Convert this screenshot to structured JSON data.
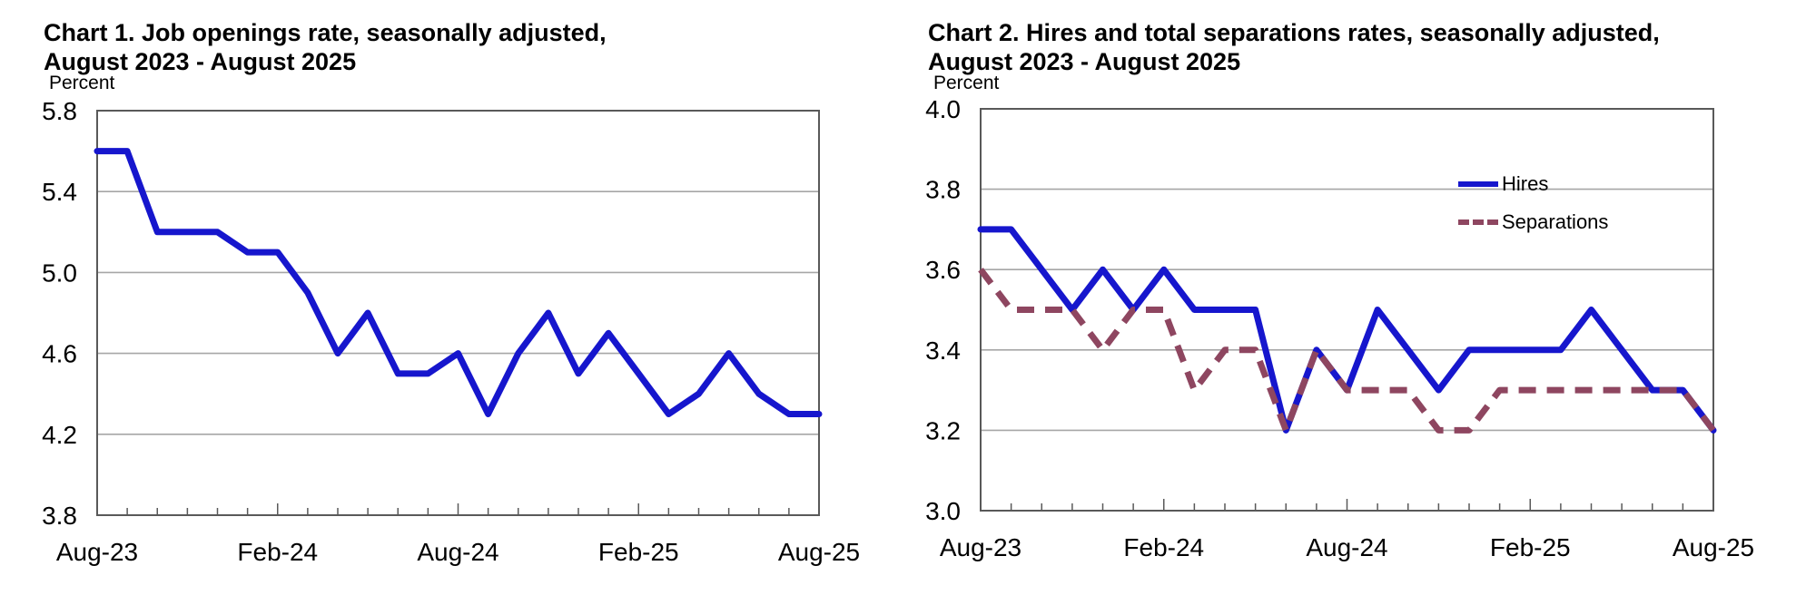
{
  "page": {
    "background": "#ffffff"
  },
  "charts": [
    {
      "title_line1": "Chart 1. Job openings rate, seasonally adjusted,",
      "title_line2": "August 2023 - August 2025",
      "unit_label": "Percent"
    },
    {
      "title_line1": "Chart 2. Hires and total separations rates, seasonally adjusted,",
      "title_line2": "August 2023 - August 2025",
      "unit_label": "Percent"
    }
  ],
  "chart_data": [
    {
      "type": "line",
      "title": "Chart 1. Job openings rate, seasonally adjusted, August 2023 - August 2025",
      "ylabel": "Percent",
      "xlabel": "",
      "ylim": [
        3.8,
        5.8
      ],
      "y_ticks": [
        5.8,
        5.4,
        5.0,
        4.6,
        4.2,
        3.8
      ],
      "x": [
        "Aug-23",
        "Sep-23",
        "Oct-23",
        "Nov-23",
        "Dec-23",
        "Jan-24",
        "Feb-24",
        "Mar-24",
        "Apr-24",
        "May-24",
        "Jun-24",
        "Jul-24",
        "Aug-24",
        "Sep-24",
        "Oct-24",
        "Nov-24",
        "Dec-24",
        "Jan-25",
        "Feb-25",
        "Mar-25",
        "Apr-25",
        "May-25",
        "Jun-25",
        "Jul-25",
        "Aug-25"
      ],
      "x_tick_labels": [
        "Aug-23",
        "Feb-24",
        "Aug-24",
        "Feb-25",
        "Aug-25"
      ],
      "grid": "horizontal",
      "legend_position": "none",
      "series": [
        {
          "name": "Job openings rate",
          "color": "#1616cd",
          "line_style": "solid",
          "values": [
            5.6,
            5.6,
            5.2,
            5.2,
            5.2,
            5.1,
            5.1,
            4.9,
            4.6,
            4.8,
            4.5,
            4.5,
            4.6,
            4.3,
            4.6,
            4.8,
            4.5,
            4.7,
            4.5,
            4.3,
            4.4,
            4.6,
            4.4,
            4.3,
            4.3
          ]
        }
      ]
    },
    {
      "type": "line",
      "title": "Chart 2. Hires and total separations rates, seasonally adjusted, August 2023 - August 2025",
      "ylabel": "Percent",
      "xlabel": "",
      "ylim": [
        3.0,
        4.0
      ],
      "y_ticks": [
        4.0,
        3.8,
        3.6,
        3.4,
        3.2,
        3.0
      ],
      "x": [
        "Aug-23",
        "Sep-23",
        "Oct-23",
        "Nov-23",
        "Dec-23",
        "Jan-24",
        "Feb-24",
        "Mar-24",
        "Apr-24",
        "May-24",
        "Jun-24",
        "Jul-24",
        "Aug-24",
        "Sep-24",
        "Oct-24",
        "Nov-24",
        "Dec-24",
        "Jan-25",
        "Feb-25",
        "Mar-25",
        "Apr-25",
        "May-25",
        "Jun-25",
        "Jul-25",
        "Aug-25"
      ],
      "x_tick_labels": [
        "Aug-23",
        "Feb-24",
        "Aug-24",
        "Feb-25",
        "Aug-25"
      ],
      "grid": "horizontal",
      "legend_position": "upper right",
      "series": [
        {
          "name": "Hires",
          "color": "#1616cd",
          "line_style": "solid",
          "values": [
            3.7,
            3.7,
            3.6,
            3.5,
            3.6,
            3.5,
            3.6,
            3.5,
            3.5,
            3.5,
            3.2,
            3.4,
            3.3,
            3.5,
            3.4,
            3.3,
            3.4,
            3.4,
            3.4,
            3.4,
            3.5,
            3.4,
            3.3,
            3.3,
            3.2
          ]
        },
        {
          "name": "Separations",
          "color": "#8e4660",
          "line_style": "dashed",
          "values": [
            3.6,
            3.5,
            3.5,
            3.5,
            3.4,
            3.5,
            3.5,
            3.3,
            3.4,
            3.4,
            3.2,
            3.4,
            3.3,
            3.3,
            3.3,
            3.2,
            3.2,
            3.3,
            3.3,
            3.3,
            3.3,
            3.3,
            3.3,
            3.3,
            3.2
          ]
        }
      ]
    }
  ]
}
